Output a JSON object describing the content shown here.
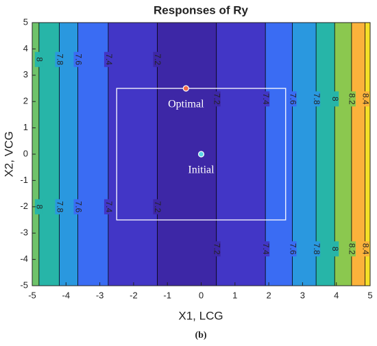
{
  "chart_data": {
    "type": "contour",
    "title": "Responses of Ry",
    "xlabel": "X1, LCG",
    "ylabel": "X2, VCG",
    "caption": "(b)",
    "xlim": [
      -5,
      5
    ],
    "ylim": [
      -5,
      5
    ],
    "xticks": [
      -5,
      -4,
      -3,
      -2,
      -1,
      0,
      1,
      2,
      3,
      4,
      5
    ],
    "yticks": [
      -5,
      -4,
      -3,
      -2,
      -1,
      0,
      1,
      2,
      3,
      4,
      5
    ],
    "contours": [
      {
        "level": 8,
        "x": -4.8
      },
      {
        "level": 7.8,
        "x": -4.2
      },
      {
        "level": 7.6,
        "x": -3.65
      },
      {
        "level": 7.4,
        "x": -2.75
      },
      {
        "level": 7.2,
        "x": -1.3
      },
      {
        "level": 7.2,
        "x": 0.45
      },
      {
        "level": 7.4,
        "x": 1.9
      },
      {
        "level": 7.6,
        "x": 2.7
      },
      {
        "level": 7.8,
        "x": 3.4
      },
      {
        "level": 8,
        "x": 3.95
      },
      {
        "level": 8.2,
        "x": 4.45
      },
      {
        "level": 8.4,
        "x": 4.85
      }
    ],
    "region_colors": [
      "#6fc36a",
      "#27b5a8",
      "#2a98df",
      "#3a6cf3",
      "#4236c6",
      "#3d27a6",
      "#4236c6",
      "#3a6cf3",
      "#2a98df",
      "#27b5a8",
      "#8bc84f",
      "#fbb23b",
      "#f5df27"
    ],
    "box": {
      "xlim": [
        -2.5,
        2.5
      ],
      "ylim": [
        -2.5,
        2.5
      ],
      "color": "#ffffff"
    },
    "points": [
      {
        "label": "Optimal",
        "x": -0.45,
        "y": 2.5,
        "color": "#f26b4a"
      },
      {
        "label": "Initial",
        "x": 0,
        "y": 0,
        "color": "#5bd6e6"
      }
    ]
  }
}
